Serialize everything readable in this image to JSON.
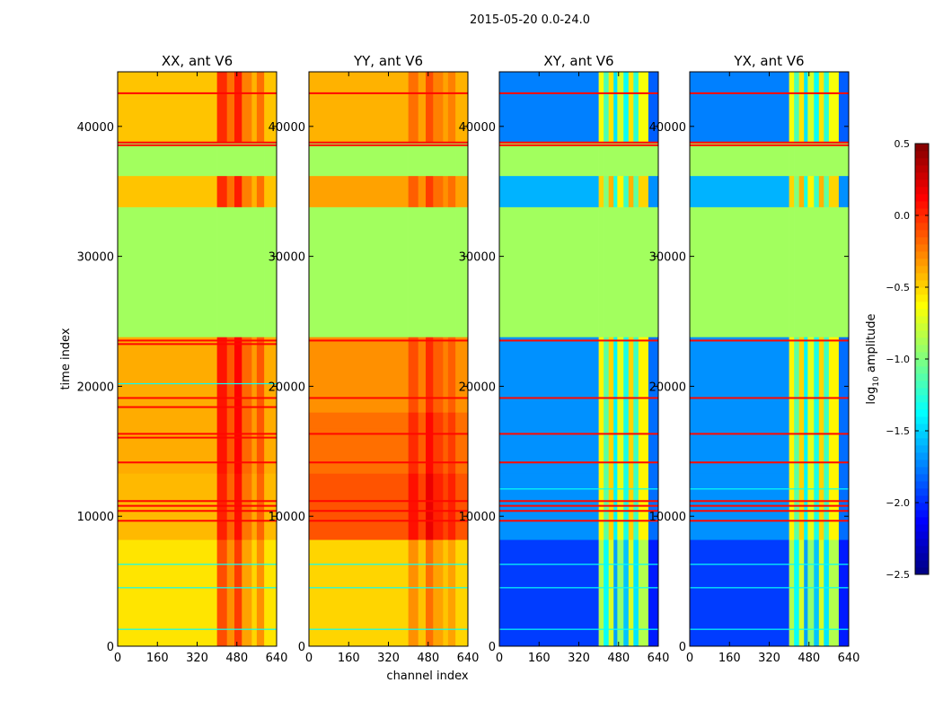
{
  "chart_data": {
    "type": "heatmap",
    "title": "2015-05-20 0.0-24.0",
    "xlabel": "channel index",
    "ylabel": "time index",
    "xlim": [
      0,
      640
    ],
    "ylim": [
      0,
      44200
    ],
    "xticks": [
      "0",
      "160",
      "320",
      "480",
      "640"
    ],
    "xtick_values": [
      0,
      160,
      320,
      480,
      640
    ],
    "yticks": [
      "0",
      "10000",
      "20000",
      "30000",
      "40000"
    ],
    "ytick_values": [
      0,
      10000,
      20000,
      30000,
      40000
    ],
    "colorbar": {
      "label_prefix": "log",
      "label_sub": "10",
      "label_suffix": " amplitude",
      "range": [
        -2.5,
        0.5
      ],
      "ticks": [
        "0.5",
        "0.0",
        "−0.5",
        "−1.0",
        "−1.5",
        "−2.0",
        "−2.5"
      ],
      "tick_values": [
        0.5,
        0.0,
        -0.5,
        -1.0,
        -1.5,
        -2.0,
        -2.5
      ],
      "colormap": "jet"
    },
    "panels": [
      {
        "title": "XX, ant V6",
        "time_bands": [
          [
            0,
            8200,
            -0.55
          ],
          [
            8200,
            13300,
            -0.42
          ],
          [
            13300,
            23800,
            -0.38
          ],
          [
            23800,
            33800,
            -0.9
          ],
          [
            33800,
            36200,
            -0.45
          ],
          [
            36200,
            38800,
            -0.9
          ],
          [
            38800,
            44200,
            -0.45
          ]
        ],
        "channel_offsets": [
          [
            0,
            400,
            0
          ],
          [
            400,
            440,
            0.45
          ],
          [
            440,
            470,
            0.25
          ],
          [
            470,
            500,
            0.5
          ],
          [
            500,
            540,
            0.2
          ],
          [
            540,
            560,
            0.05
          ],
          [
            560,
            590,
            0.25
          ],
          [
            590,
            640,
            0.0
          ]
        ],
        "flag_times": [
          42550,
          38760,
          38550,
          23520,
          23250,
          19100,
          18400,
          16340,
          16050,
          14140,
          11170,
          10800,
          10410,
          9650
        ],
        "cyan_times": [
          4500,
          6300,
          1300,
          20200
        ]
      },
      {
        "title": "YY, ant V6",
        "time_bands": [
          [
            0,
            8200,
            -0.5
          ],
          [
            8200,
            13300,
            -0.12
          ],
          [
            13300,
            16800,
            -0.2
          ],
          [
            16800,
            18000,
            -0.2
          ],
          [
            18000,
            23800,
            -0.3
          ],
          [
            23800,
            33800,
            -0.9
          ],
          [
            33800,
            36200,
            -0.35
          ],
          [
            36200,
            38800,
            -0.9
          ],
          [
            38800,
            44200,
            -0.4
          ]
        ],
        "channel_offsets": [
          [
            0,
            400,
            0
          ],
          [
            400,
            440,
            0.2
          ],
          [
            440,
            470,
            0.05
          ],
          [
            470,
            500,
            0.3
          ],
          [
            500,
            540,
            0.15
          ],
          [
            540,
            560,
            0.05
          ],
          [
            560,
            590,
            0.15
          ],
          [
            590,
            640,
            0.0
          ]
        ],
        "flag_times": [
          42550,
          38760,
          38550,
          23520,
          19100,
          16340,
          14140,
          11170,
          10410,
          9650
        ],
        "cyan_times": [
          4500,
          6300,
          1300
        ]
      },
      {
        "title": "XY, ant V6",
        "time_bands": [
          [
            0,
            8200,
            -1.95
          ],
          [
            8200,
            13300,
            -1.7
          ],
          [
            13300,
            23800,
            -1.7
          ],
          [
            23800,
            33800,
            -0.9
          ],
          [
            33800,
            36200,
            -1.6
          ],
          [
            36200,
            38800,
            -0.9
          ],
          [
            38800,
            44200,
            -1.75
          ]
        ],
        "channel_offsets": [
          [
            0,
            400,
            0
          ],
          [
            400,
            420,
            1.1
          ],
          [
            420,
            440,
            0.6
          ],
          [
            440,
            460,
            1.2
          ],
          [
            460,
            475,
            0.3
          ],
          [
            475,
            500,
            1.0
          ],
          [
            500,
            520,
            0.4
          ],
          [
            520,
            540,
            1.2
          ],
          [
            540,
            560,
            0.5
          ],
          [
            560,
            600,
            1.1
          ],
          [
            600,
            640,
            -0.1
          ]
        ],
        "flag_times": [
          42550,
          38760,
          38550,
          23520,
          19100,
          16340,
          14140,
          11170,
          10800,
          10410,
          9650
        ],
        "cyan_times": [
          4500,
          6300,
          1300,
          12100
        ]
      },
      {
        "title": "YX, ant V6",
        "time_bands": [
          [
            0,
            8200,
            -1.95
          ],
          [
            8200,
            13300,
            -1.7
          ],
          [
            13300,
            23800,
            -1.7
          ],
          [
            23800,
            33800,
            -0.9
          ],
          [
            33800,
            36200,
            -1.6
          ],
          [
            36200,
            38800,
            -0.9
          ],
          [
            38800,
            44200,
            -1.75
          ]
        ],
        "channel_offsets": [
          [
            0,
            400,
            0
          ],
          [
            400,
            420,
            1.1
          ],
          [
            420,
            440,
            0.6
          ],
          [
            440,
            460,
            1.2
          ],
          [
            460,
            475,
            0.3
          ],
          [
            475,
            500,
            1.0
          ],
          [
            500,
            520,
            0.4
          ],
          [
            520,
            540,
            1.2
          ],
          [
            540,
            560,
            0.5
          ],
          [
            560,
            600,
            1.1
          ],
          [
            600,
            640,
            -0.1
          ]
        ],
        "flag_times": [
          42550,
          38760,
          38550,
          23520,
          19100,
          16340,
          14140,
          11170,
          10800,
          10410,
          9650
        ],
        "cyan_times": [
          4500,
          6300,
          1300,
          12100
        ]
      }
    ]
  }
}
